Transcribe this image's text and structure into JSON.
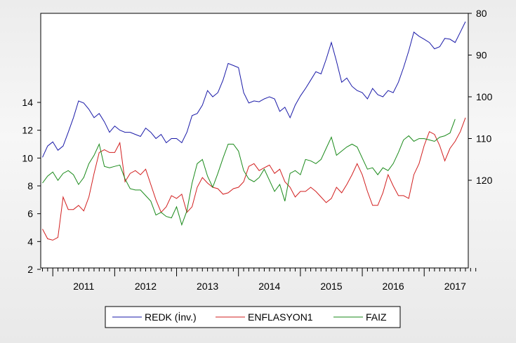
{
  "chart_data": {
    "type": "line",
    "title": "",
    "xlabel": "",
    "ylabel": "",
    "x_axis": {
      "labels": [
        "2011",
        "2012",
        "2013",
        "2014",
        "2015",
        "2016",
        "2017"
      ],
      "start": "2010-11",
      "end": "2017-12",
      "frequency": "monthly"
    },
    "left_axis": {
      "ylim": [
        2,
        14
      ],
      "ticks": [
        2,
        4,
        6,
        8,
        10,
        12,
        14
      ]
    },
    "right_axis": {
      "ylim": [
        124,
        80
      ],
      "ticks": [
        80,
        90,
        100,
        110,
        120
      ],
      "inverted": true
    },
    "legend": {
      "position": "bottom-center",
      "entries": [
        "REDK (İnv.)",
        "ENFLASYON1",
        "FAIZ"
      ]
    },
    "grid": false,
    "series": [
      {
        "name": "REDK (İnv.)",
        "axis": "right",
        "color": "#1a1aa8",
        "values": [
          114.5,
          111.8,
          110.8,
          112.8,
          111.8,
          108.5,
          105.0,
          101.0,
          101.5,
          103.0,
          105.0,
          104.0,
          106.0,
          108.5,
          107.0,
          108.0,
          108.5,
          108.5,
          109.0,
          109.5,
          107.5,
          108.5,
          110.0,
          109.0,
          111.0,
          110.0,
          110.0,
          111.0,
          108.5,
          104.5,
          104.0,
          102.0,
          98.5,
          100.0,
          99.0,
          96.0,
          92.0,
          92.5,
          93.0,
          99.0,
          101.5,
          101.0,
          101.2,
          100.5,
          100.0,
          100.5,
          103.5,
          102.5,
          105.0,
          102.0,
          99.8,
          98.0,
          96.0,
          94.0,
          94.5,
          91.0,
          87.0,
          91.5,
          96.5,
          95.5,
          97.5,
          98.5,
          99.0,
          100.5,
          98.0,
          99.5,
          100.0,
          98.5,
          99.0,
          96.5,
          93.0,
          89.0,
          84.5,
          85.5,
          86.2,
          87.0,
          88.5,
          88.0,
          86.0,
          86.2,
          87.0,
          84.5,
          82.0
        ]
      },
      {
        "name": "ENFLASYON1",
        "axis": "left",
        "color": "#d21f1f",
        "values": [
          4.9,
          4.2,
          4.1,
          4.3,
          7.2,
          6.3,
          6.3,
          6.6,
          6.2,
          7.2,
          8.9,
          10.4,
          10.6,
          10.4,
          10.4,
          11.1,
          8.3,
          8.9,
          9.1,
          8.8,
          9.2,
          8.1,
          7.0,
          6.1,
          6.5,
          7.3,
          7.1,
          7.4,
          6.1,
          6.5,
          7.9,
          8.6,
          8.2,
          7.9,
          7.8,
          7.4,
          7.5,
          7.8,
          7.9,
          8.3,
          9.4,
          9.6,
          9.1,
          9.3,
          9.5,
          8.9,
          9.2,
          8.3,
          7.9,
          7.2,
          7.6,
          7.6,
          7.9,
          7.6,
          7.2,
          6.8,
          7.1,
          7.9,
          7.5,
          8.1,
          8.8,
          9.6,
          8.8,
          7.6,
          6.6,
          6.6,
          7.5,
          8.8,
          8.0,
          7.3,
          7.3,
          7.1,
          8.8,
          9.6,
          10.9,
          11.9,
          11.7,
          10.9,
          9.8,
          10.7,
          11.2,
          11.9,
          12.9
        ]
      },
      {
        "name": "FAIZ",
        "axis": "left",
        "color": "#1a8a1a",
        "values": [
          8.2,
          8.7,
          9.0,
          8.4,
          8.9,
          9.1,
          8.8,
          8.1,
          8.6,
          9.6,
          10.2,
          11.0,
          9.4,
          9.3,
          9.4,
          9.5,
          8.5,
          7.8,
          7.7,
          7.7,
          7.3,
          6.9,
          5.9,
          6.1,
          5.8,
          5.7,
          6.5,
          5.2,
          6.2,
          8.2,
          9.6,
          9.9,
          8.7,
          7.9,
          8.9,
          10.0,
          11.0,
          11.0,
          10.5,
          9.1,
          8.5,
          8.3,
          8.6,
          9.2,
          8.4,
          7.6,
          8.1,
          6.9,
          8.9,
          9.1,
          8.8,
          9.9,
          9.8,
          9.6,
          9.9,
          10.7,
          11.5,
          10.2,
          10.5,
          10.8,
          11.0,
          10.8,
          10.0,
          9.2,
          9.3,
          8.8,
          9.3,
          9.1,
          9.6,
          10.4,
          11.3,
          11.6,
          11.2,
          11.4,
          11.4,
          11.3,
          11.2,
          11.5,
          11.6,
          11.8,
          12.8
        ]
      }
    ]
  }
}
